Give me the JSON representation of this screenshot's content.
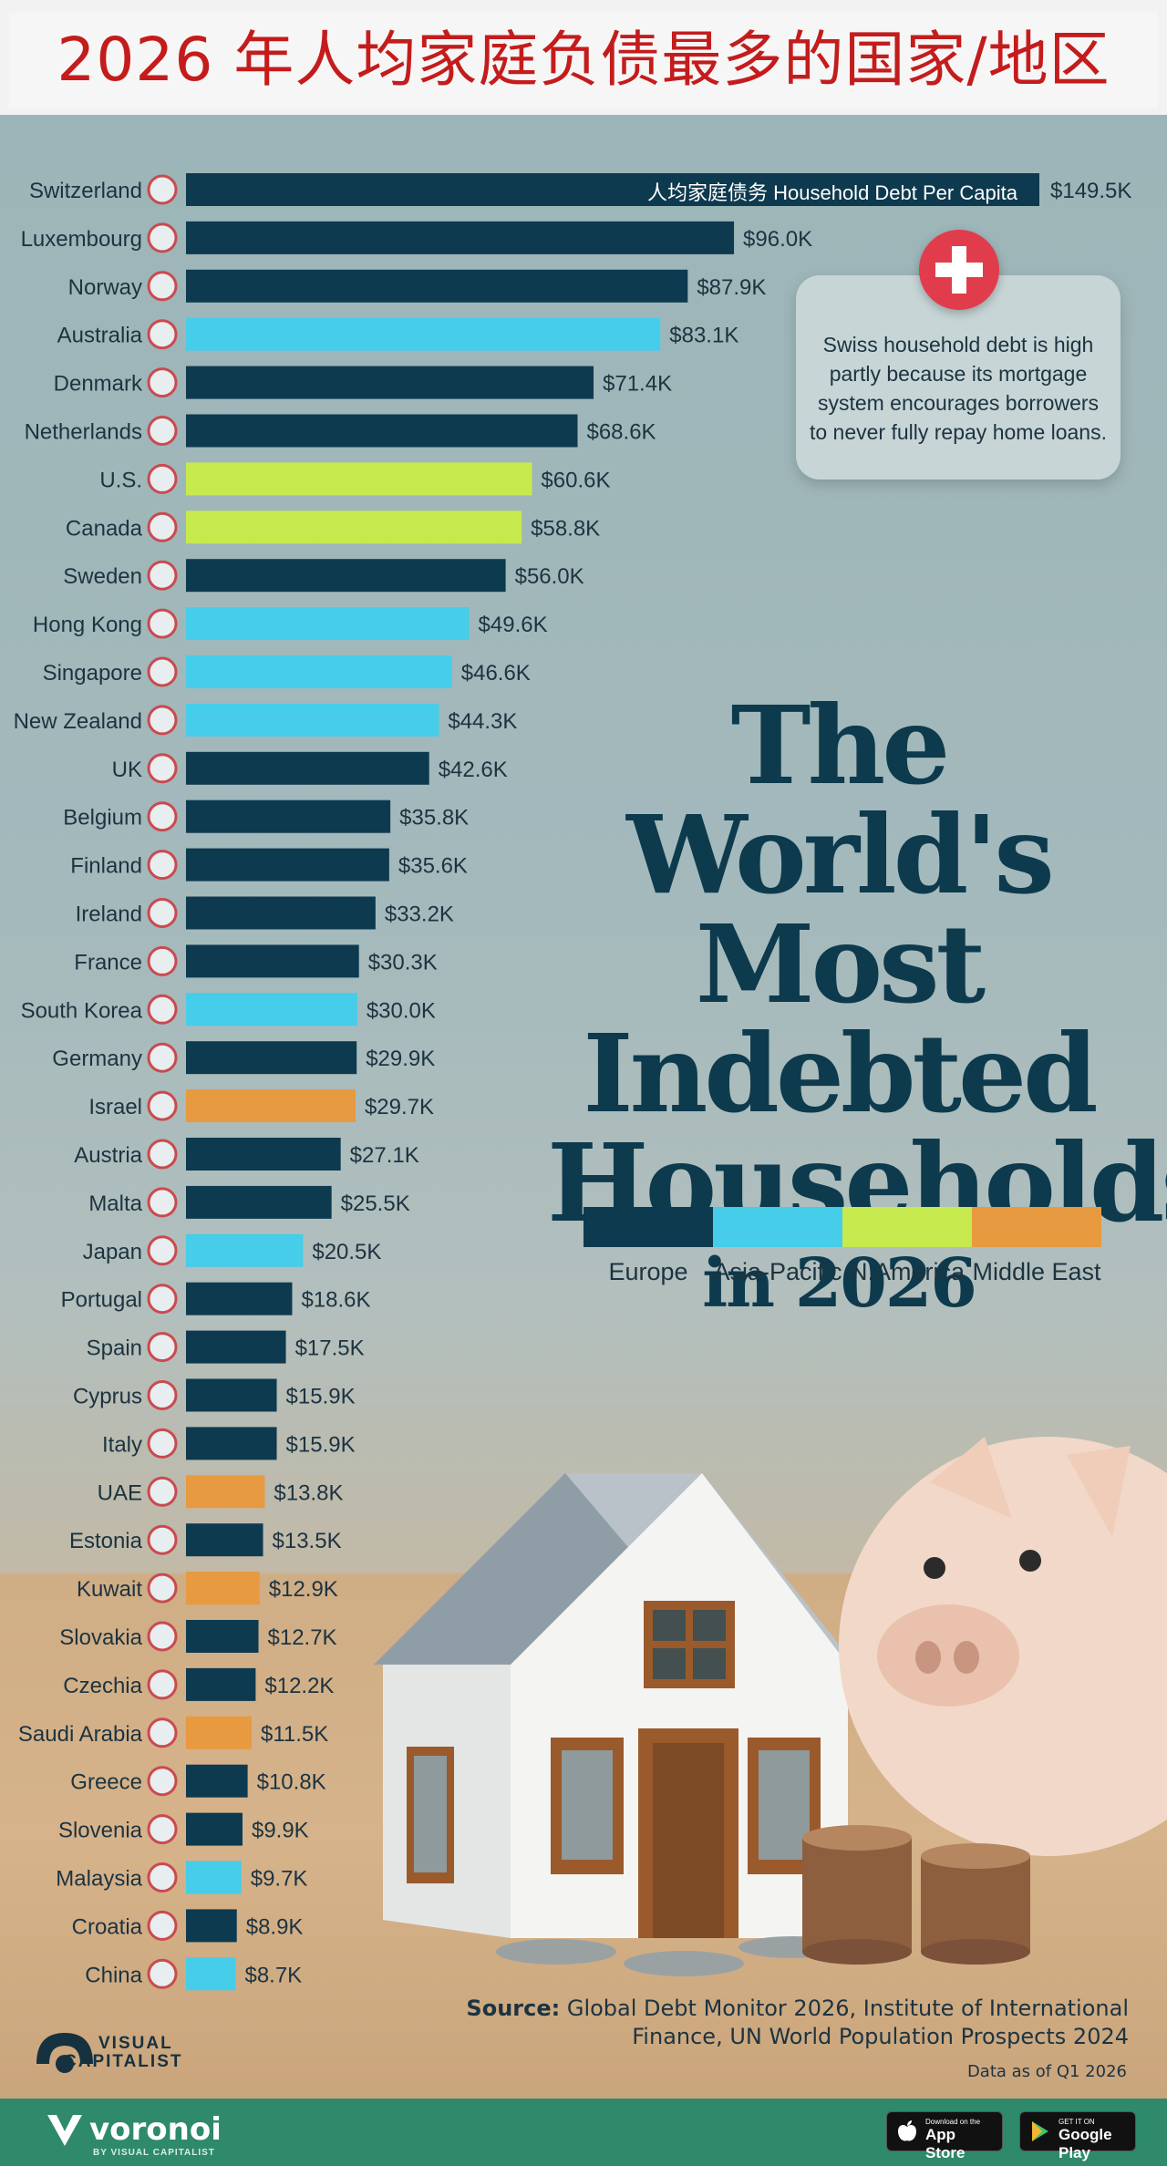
{
  "header": {
    "title": "2026 年人均家庭负债最多的国家/地区"
  },
  "poster": {
    "title_line1": "The World's",
    "title_line2": "Most Indebted",
    "title_line3": "Households",
    "title_line4": "in 2026",
    "bar_header": "人均家庭债务   Household Debt Per Capita",
    "callout": "Swiss household debt is high partly because its mortgage system encourages borrowers to never fully repay home loans.",
    "source_label": "Source:",
    "source_text": "Global Debt Monitor 2026, Institute of International Finance, UN World Population Prospects 2024",
    "data_asof": "Data as of Q1 2026",
    "logo_line1": "VISUAL",
    "logo_line2": "CAPITALIST"
  },
  "footer": {
    "brand": "voronoi",
    "brand_sub": "BY VISUAL CAPITALIST",
    "app_store_small": "Download on the",
    "app_store_big": "App Store",
    "google_small": "GET IT ON",
    "google_big": "Google Play"
  },
  "colors": {
    "Europe": "#0e3a4f",
    "Asia-Pacific": "#45cdea",
    "N.America": "#c6ea4e",
    "Middle East": "#e79a40"
  },
  "chart_data": {
    "type": "bar",
    "orientation": "horizontal",
    "title": "The World's Most Indebted Households in 2026",
    "value_label": "Household Debt Per Capita",
    "unit": "$ thousands",
    "legend": [
      "Europe",
      "Asia-Pacific",
      "N.America",
      "Middle East"
    ],
    "rows": [
      {
        "country": "Switzerland",
        "value": 149.5,
        "label": "$149.5K",
        "region": "Europe"
      },
      {
        "country": "Luxembourg",
        "value": 96.0,
        "label": "$96.0K",
        "region": "Europe"
      },
      {
        "country": "Norway",
        "value": 87.9,
        "label": "$87.9K",
        "region": "Europe"
      },
      {
        "country": "Australia",
        "value": 83.1,
        "label": "$83.1K",
        "region": "Asia-Pacific"
      },
      {
        "country": "Denmark",
        "value": 71.4,
        "label": "$71.4K",
        "region": "Europe"
      },
      {
        "country": "Netherlands",
        "value": 68.6,
        "label": "$68.6K",
        "region": "Europe"
      },
      {
        "country": "U.S.",
        "value": 60.6,
        "label": "$60.6K",
        "region": "N.America"
      },
      {
        "country": "Canada",
        "value": 58.8,
        "label": "$58.8K",
        "region": "N.America"
      },
      {
        "country": "Sweden",
        "value": 56.0,
        "label": "$56.0K",
        "region": "Europe"
      },
      {
        "country": "Hong Kong",
        "value": 49.6,
        "label": "$49.6K",
        "region": "Asia-Pacific"
      },
      {
        "country": "Singapore",
        "value": 46.6,
        "label": "$46.6K",
        "region": "Asia-Pacific"
      },
      {
        "country": "New Zealand",
        "value": 44.3,
        "label": "$44.3K",
        "region": "Asia-Pacific"
      },
      {
        "country": "UK",
        "value": 42.6,
        "label": "$42.6K",
        "region": "Europe"
      },
      {
        "country": "Belgium",
        "value": 35.8,
        "label": "$35.8K",
        "region": "Europe"
      },
      {
        "country": "Finland",
        "value": 35.6,
        "label": "$35.6K",
        "region": "Europe"
      },
      {
        "country": "Ireland",
        "value": 33.2,
        "label": "$33.2K",
        "region": "Europe"
      },
      {
        "country": "France",
        "value": 30.3,
        "label": "$30.3K",
        "region": "Europe"
      },
      {
        "country": "South Korea",
        "value": 30.0,
        "label": "$30.0K",
        "region": "Asia-Pacific"
      },
      {
        "country": "Germany",
        "value": 29.9,
        "label": "$29.9K",
        "region": "Europe"
      },
      {
        "country": "Israel",
        "value": 29.7,
        "label": "$29.7K",
        "region": "Middle East"
      },
      {
        "country": "Austria",
        "value": 27.1,
        "label": "$27.1K",
        "region": "Europe"
      },
      {
        "country": "Malta",
        "value": 25.5,
        "label": "$25.5K",
        "region": "Europe"
      },
      {
        "country": "Japan",
        "value": 20.5,
        "label": "$20.5K",
        "region": "Asia-Pacific"
      },
      {
        "country": "Portugal",
        "value": 18.6,
        "label": "$18.6K",
        "region": "Europe"
      },
      {
        "country": "Spain",
        "value": 17.5,
        "label": "$17.5K",
        "region": "Europe"
      },
      {
        "country": "Cyprus",
        "value": 15.9,
        "label": "$15.9K",
        "region": "Europe"
      },
      {
        "country": "Italy",
        "value": 15.9,
        "label": "$15.9K",
        "region": "Europe"
      },
      {
        "country": "UAE",
        "value": 13.8,
        "label": "$13.8K",
        "region": "Middle East"
      },
      {
        "country": "Estonia",
        "value": 13.5,
        "label": "$13.5K",
        "region": "Europe"
      },
      {
        "country": "Kuwait",
        "value": 12.9,
        "label": "$12.9K",
        "region": "Middle East"
      },
      {
        "country": "Slovakia",
        "value": 12.7,
        "label": "$12.7K",
        "region": "Europe"
      },
      {
        "country": "Czechia",
        "value": 12.2,
        "label": "$12.2K",
        "region": "Europe"
      },
      {
        "country": "Saudi Arabia",
        "value": 11.5,
        "label": "$11.5K",
        "region": "Middle East"
      },
      {
        "country": "Greece",
        "value": 10.8,
        "label": "$10.8K",
        "region": "Europe"
      },
      {
        "country": "Slovenia",
        "value": 9.9,
        "label": "$9.9K",
        "region": "Europe"
      },
      {
        "country": "Malaysia",
        "value": 9.7,
        "label": "$9.7K",
        "region": "Asia-Pacific"
      },
      {
        "country": "Croatia",
        "value": 8.9,
        "label": "$8.9K",
        "region": "Europe"
      },
      {
        "country": "China",
        "value": 8.7,
        "label": "$8.7K",
        "region": "Asia-Pacific"
      }
    ]
  }
}
